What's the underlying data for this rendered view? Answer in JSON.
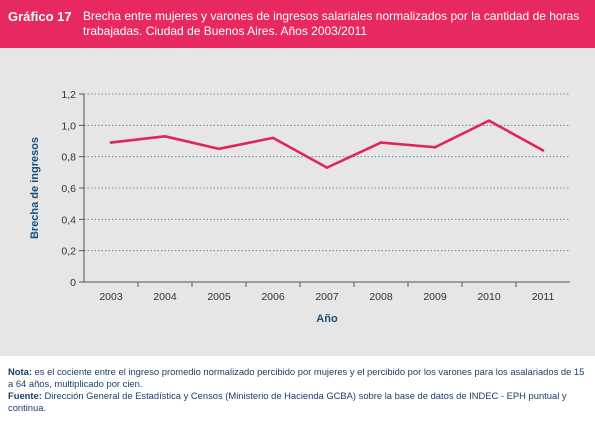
{
  "header": {
    "label": "Gráfico 17",
    "title": "Brecha entre mujeres y varones de ingresos salariales normalizados por la cantidad de horas trabajadas. Ciudad de Buenos Aires. Años 2003/2011"
  },
  "colors": {
    "header_bg": "#e8295f",
    "panel_bg": "#e6e6e6",
    "series": "#e0245e",
    "axis_title": "#1a4f7a",
    "notes_text": "#1a3e66"
  },
  "chart_data": {
    "type": "line",
    "x": [
      "2003",
      "2004",
      "2005",
      "2006",
      "2007",
      "2008",
      "2009",
      "2010",
      "2011"
    ],
    "series": [
      {
        "values": [
          0.89,
          0.93,
          0.85,
          0.92,
          0.73,
          0.89,
          0.86,
          1.03,
          0.84
        ]
      }
    ],
    "xlabel": "Año",
    "ylabel": "Brecha de ingresos",
    "ylim": [
      0,
      1.2
    ],
    "yticks": [
      "0",
      "0,2",
      "0,4",
      "0,6",
      "0,8",
      "1,0",
      "1,2"
    ],
    "grid": "horizontal dotted",
    "legend": "none"
  },
  "notes": {
    "nota_label": "Nota:",
    "nota_text": " es el cociente entre el ingreso promedio normalizado percibido por mujeres y el percibido por los varones para los asalariados de 15 a 64 años, multiplicado por cien.",
    "fuente_label": "Fuente:",
    "fuente_text": " Dirección General de Estadística y Censos (Ministerio de Hacienda GCBA) sobre la base de datos de INDEC - EPH puntual y continua."
  }
}
